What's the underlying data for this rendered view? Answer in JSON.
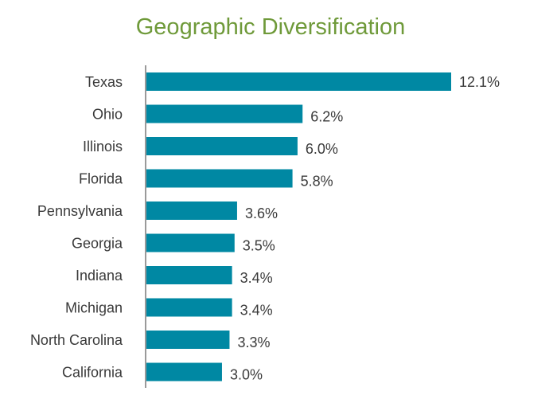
{
  "chart_data": {
    "type": "bar",
    "orientation": "horizontal",
    "title": "Geographic Diversification",
    "categories": [
      "Texas",
      "Ohio",
      "Illinois",
      "Florida",
      "Pennsylvania",
      "Georgia",
      "Indiana",
      "Michigan",
      "North Carolina",
      "California"
    ],
    "values": [
      12.1,
      6.2,
      6.0,
      5.8,
      3.6,
      3.5,
      3.4,
      3.4,
      3.3,
      3.0
    ],
    "value_labels": [
      "12.1%",
      "6.2%",
      "6.0%",
      "5.8%",
      "3.6%",
      "3.5%",
      "3.4%",
      "3.4%",
      "3.3%",
      "3.0%"
    ],
    "xlabel": "",
    "ylabel": "",
    "grid": false,
    "legend": "none",
    "colors": {
      "bar": "#0088a3",
      "title": "#6f9a3a",
      "axis": "#9a9a9a"
    }
  }
}
